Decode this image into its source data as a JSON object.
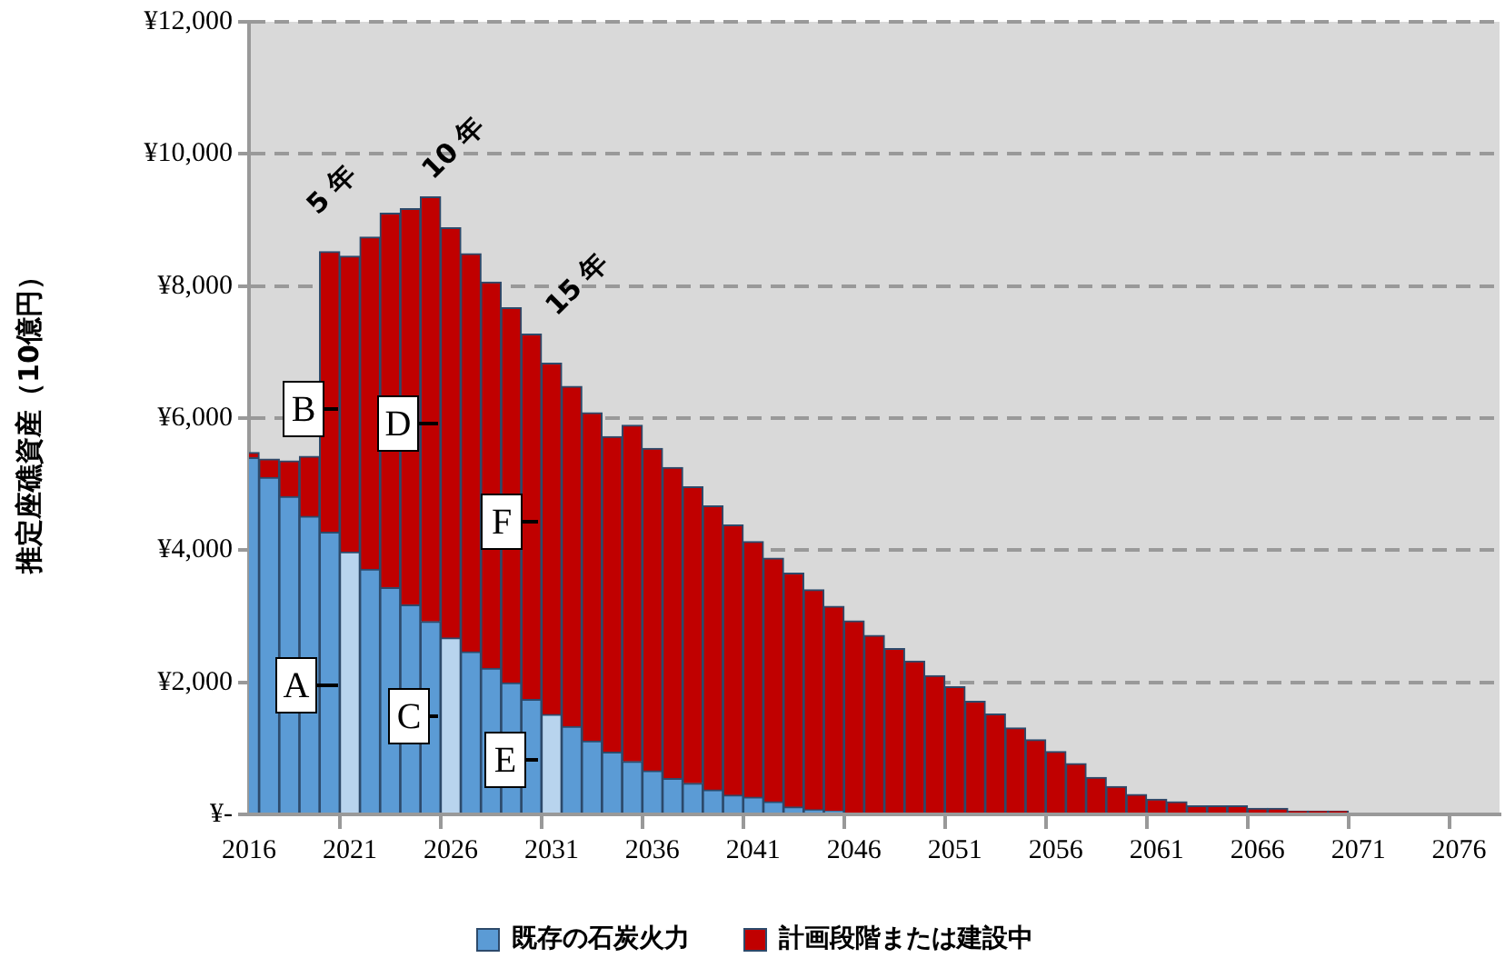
{
  "chart_data": {
    "type": "bar",
    "stacked": true,
    "ylabel": "推定座礁資産（10億円）",
    "categories": [
      "2016",
      null,
      null,
      null,
      null,
      "2021",
      null,
      null,
      null,
      null,
      "2026",
      null,
      null,
      null,
      null,
      "2031",
      null,
      null,
      null,
      null,
      "2036",
      null,
      null,
      null,
      null,
      "2041",
      null,
      null,
      null,
      null,
      "2046",
      null,
      null,
      null,
      null,
      "2051",
      null,
      null,
      null,
      null,
      "2056",
      null,
      null,
      null,
      null,
      "2061",
      null,
      null,
      null,
      null,
      "2066",
      null,
      null,
      null,
      null,
      "2071",
      null,
      null,
      null,
      null,
      "2076",
      null,
      null
    ],
    "ylim": [
      0,
      12000
    ],
    "yticks": [
      {
        "value": 0,
        "label": "¥-"
      },
      {
        "value": 2000,
        "label": "¥2,000"
      },
      {
        "value": 4000,
        "label": "¥4,000"
      },
      {
        "value": 6000,
        "label": "¥6,000"
      },
      {
        "value": 8000,
        "label": "¥8,000"
      },
      {
        "value": 10000,
        "label": "¥10,000"
      },
      {
        "value": 12000,
        "label": "¥12,000"
      }
    ],
    "series": [
      {
        "name": "既存の石炭火力",
        "color": "#5b9bd5",
        "colors": [
          "#5b9bd5",
          "#5b9bd5",
          "#5b9bd5",
          "#5b9bd5",
          "#5b9bd5",
          "#b8d4ee",
          "#5b9bd5",
          "#5b9bd5",
          "#5b9bd5",
          "#5b9bd5",
          "#b8d4ee",
          "#5b9bd5",
          "#5b9bd5",
          "#5b9bd5",
          "#5b9bd5",
          "#b8d4ee",
          "#5b9bd5",
          "#5b9bd5",
          "#5b9bd5",
          "#5b9bd5",
          "#5b9bd5",
          "#5b9bd5",
          "#5b9bd5",
          "#5b9bd5",
          "#5b9bd5",
          "#5b9bd5",
          "#5b9bd5",
          "#5b9bd5",
          "#5b9bd5",
          "#5b9bd5",
          "#5b9bd5",
          "#5b9bd5",
          "#5b9bd5",
          "#5b9bd5",
          "#5b9bd5",
          "#5b9bd5",
          "#5b9bd5",
          "#5b9bd5",
          "#5b9bd5",
          "#5b9bd5",
          "#5b9bd5",
          "#5b9bd5",
          "#5b9bd5",
          "#5b9bd5",
          "#5b9bd5",
          "#5b9bd5",
          "#5b9bd5",
          "#5b9bd5",
          "#5b9bd5",
          "#5b9bd5",
          "#5b9bd5",
          "#5b9bd5",
          "#5b9bd5",
          "#5b9bd5",
          "#5b9bd5",
          "#5b9bd5",
          "#5b9bd5",
          "#5b9bd5",
          "#5b9bd5",
          "#5b9bd5",
          "#5b9bd5",
          "#5b9bd5",
          "#5b9bd5"
        ],
        "values": [
          5400,
          5100,
          4810,
          4510,
          4270,
          3970,
          3710,
          3430,
          3170,
          2920,
          2670,
          2460,
          2210,
          1990,
          1740,
          1510,
          1330,
          1110,
          940,
          800,
          660,
          540,
          470,
          370,
          290,
          260,
          190,
          110,
          70,
          50,
          0,
          0,
          0,
          0,
          0,
          0,
          0,
          0,
          0,
          0,
          0,
          0,
          0,
          0,
          0,
          0,
          0,
          0,
          0,
          0,
          0,
          0,
          0,
          0,
          0,
          0,
          0,
          0,
          0,
          0,
          0,
          0,
          0
        ]
      },
      {
        "name": "計画段階または建設中",
        "color": "#c00000",
        "values": [
          80,
          280,
          540,
          910,
          4250,
          4480,
          5030,
          5670,
          6000,
          6430,
          6210,
          6030,
          5850,
          5680,
          5530,
          5320,
          5150,
          4970,
          4780,
          5090,
          4880,
          4710,
          4490,
          4300,
          4090,
          3870,
          3690,
          3540,
          3330,
          3100,
          2930,
          2710,
          2510,
          2320,
          2100,
          1930,
          1710,
          1520,
          1310,
          1130,
          950,
          770,
          560,
          420,
          300,
          230,
          190,
          130,
          130,
          130,
          90,
          90,
          50,
          50,
          50,
          0,
          0,
          0,
          0,
          0,
          0,
          0,
          0
        ]
      }
    ],
    "annotations": [
      "5 年",
      "10 年",
      "15 年",
      "A",
      "B",
      "C",
      "D",
      "E",
      "F"
    ],
    "grid": "y",
    "legend": "bottom"
  }
}
